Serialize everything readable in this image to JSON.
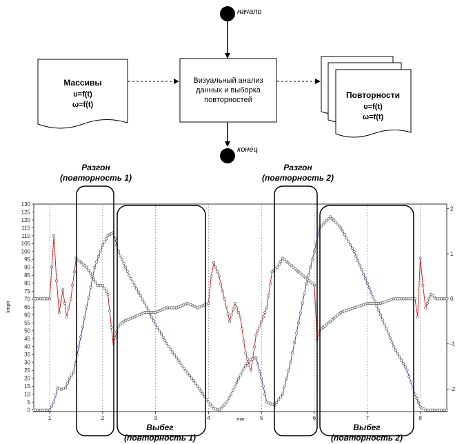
{
  "flow": {
    "start_label": "начало",
    "end_label": "конец",
    "arrays_box": [
      "Массивы",
      "υ=f(t)",
      "ω=f(t)"
    ],
    "process_box": [
      "Визуальный анализ",
      "данных и выборка",
      "повторностей"
    ],
    "repeats_box": [
      "Повторности",
      "υ=f(t)",
      "ω=f(t)"
    ]
  },
  "annotations": {
    "accel1": [
      "Разгон",
      "(повторность 1)"
    ],
    "accel2": [
      "Разгон",
      "(повторность 2)"
    ],
    "coast1": [
      "Выбег",
      "(повторность 1)"
    ],
    "coast2": [
      "Выбег",
      "(повторность 2)"
    ]
  },
  "chart_data": {
    "type": "line",
    "xlabel": "min",
    "ylabel": "kmph",
    "xlim": [
      0.7,
      8.5
    ],
    "ylim": [
      -1,
      130
    ],
    "y2lim": [
      -2.5,
      2.1
    ],
    "x_ticks": [
      "1",
      "2",
      "3",
      "4",
      "5",
      "6",
      "7",
      "8"
    ],
    "y_ticks": [
      "0",
      "5",
      "10",
      "15",
      "20",
      "25",
      "30",
      "35",
      "40",
      "45",
      "50",
      "55",
      "60",
      "65",
      "70",
      "75",
      "80",
      "85",
      "90",
      "95",
      "100",
      "105",
      "110",
      "115",
      "120",
      "125",
      "130"
    ],
    "y2_ticks": [
      "2",
      "1",
      "0",
      "-1",
      "-2"
    ],
    "grid": "vertical dotted",
    "series": [
      {
        "color": "#2a3fb0",
        "marker": "circle",
        "axis": "left",
        "x": [
          0.7,
          1.0,
          1.08,
          1.15,
          1.22,
          1.3,
          1.38,
          1.45,
          1.55,
          1.7,
          1.85,
          2.0,
          2.1,
          2.2,
          2.3,
          2.5,
          2.75,
          3.0,
          3.25,
          3.5,
          3.75,
          4.0,
          4.1,
          4.2,
          4.35,
          4.5,
          4.6,
          4.7,
          4.8,
          4.9,
          5.0,
          5.1,
          5.25,
          5.4,
          5.55,
          5.7,
          5.85,
          6.0,
          6.1,
          6.3,
          6.5,
          6.75,
          7.0,
          7.25,
          7.5,
          7.75,
          7.9,
          8.0,
          8.1,
          8.3,
          8.5
        ],
        "y": [
          0,
          0,
          5,
          14,
          13,
          14,
          20,
          24,
          40,
          65,
          90,
          104,
          110,
          112,
          100,
          85,
          70,
          54,
          40,
          28,
          17,
          5,
          1,
          0,
          5,
          15,
          22,
          28,
          32,
          33,
          20,
          5,
          3,
          10,
          30,
          55,
          80,
          100,
          115,
          122,
          115,
          100,
          80,
          60,
          40,
          25,
          10,
          2,
          0,
          0,
          0
        ]
      },
      {
        "color": "#d42020",
        "marker": "circle",
        "axis": "right",
        "x": [
          0.7,
          1.0,
          1.08,
          1.13,
          1.18,
          1.25,
          1.32,
          1.4,
          1.5,
          1.6,
          1.7,
          1.8,
          1.9,
          2.0,
          2.1,
          2.2,
          2.3,
          2.4,
          2.6,
          2.8,
          3.0,
          3.2,
          3.4,
          3.6,
          3.8,
          4.0,
          4.05,
          4.1,
          4.2,
          4.3,
          4.4,
          4.5,
          4.6,
          4.7,
          4.8,
          4.9,
          5.0,
          5.1,
          5.2,
          5.3,
          5.4,
          5.5,
          5.6,
          5.7,
          5.8,
          5.9,
          6.0,
          6.05,
          6.1,
          6.3,
          6.5,
          6.75,
          7.0,
          7.25,
          7.5,
          7.75,
          7.9,
          7.95,
          8.0,
          8.05,
          8.1,
          8.2,
          8.3,
          8.5
        ],
        "y": [
          0,
          0,
          1.4,
          0.4,
          -0.3,
          0.2,
          -0.4,
          0.0,
          0.9,
          0.8,
          0.7,
          0.5,
          0.3,
          0.3,
          0.1,
          -1.0,
          -0.6,
          -0.5,
          -0.4,
          -0.3,
          -0.3,
          -0.2,
          -0.2,
          -0.1,
          -0.2,
          -0.1,
          0.5,
          0.8,
          0.5,
          0.0,
          -0.5,
          -0.1,
          -0.4,
          -1.2,
          -1.6,
          -0.8,
          -0.5,
          -0.2,
          0.6,
          0.7,
          0.9,
          0.8,
          0.7,
          0.6,
          0.5,
          0.4,
          0.3,
          -0.9,
          -0.7,
          -0.5,
          -0.3,
          -0.2,
          -0.1,
          -0.1,
          0.0,
          0.0,
          0.0,
          -0.4,
          0.9,
          0.3,
          -0.2,
          0.1,
          0.0,
          0.0
        ]
      }
    ]
  }
}
